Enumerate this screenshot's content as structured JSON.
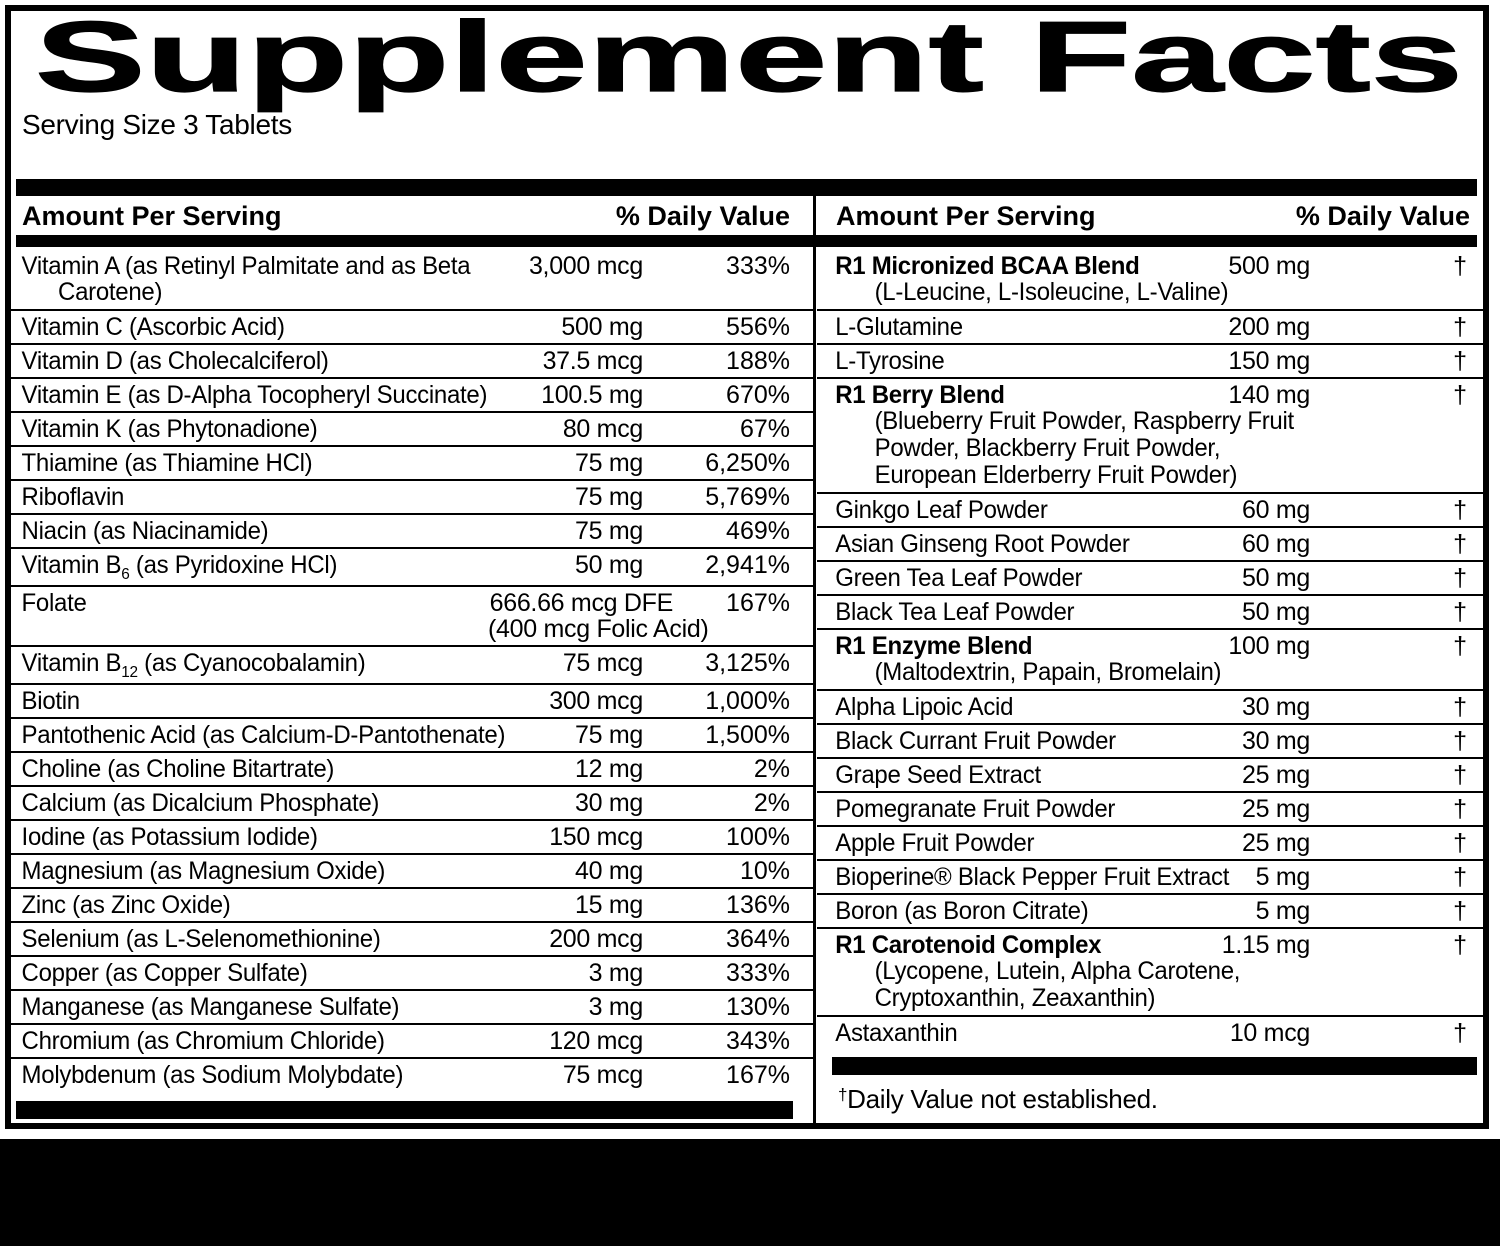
{
  "title": "Supplement Facts",
  "serving_size": "Serving Size 3 Tablets",
  "footnote_symbol": "†",
  "footnote_text": "Daily Value not established.",
  "colors": {
    "ink": "#000000",
    "paper": "#ffffff"
  },
  "columns": {
    "left": {
      "header_amount": "Amount Per Serving",
      "header_dv": "% Daily Value",
      "rows": [
        {
          "label": "Vitamin A (as Retinyl Palmitate and as Beta",
          "sublines": [
            "Carotene)"
          ],
          "amount": [
            "3,000 mcg"
          ],
          "dv": "333%"
        },
        {
          "label": "Vitamin C (Ascorbic Acid)",
          "amount": [
            "500 mg"
          ],
          "dv": "556%"
        },
        {
          "label": "Vitamin D (as Cholecalciferol)",
          "amount": [
            "37.5 mcg"
          ],
          "dv": "188%"
        },
        {
          "label": "Vitamin E (as D-Alpha Tocopheryl Succinate)",
          "amount": [
            "100.5 mg"
          ],
          "dv": "670%"
        },
        {
          "label": "Vitamin K (as Phytonadione)",
          "amount": [
            "80 mcg"
          ],
          "dv": "67%"
        },
        {
          "label": "Thiamine (as Thiamine HCl)",
          "amount": [
            "75 mg"
          ],
          "dv": "6,250%"
        },
        {
          "label": "Riboflavin",
          "amount": [
            "75 mg"
          ],
          "dv": "5,769%"
        },
        {
          "label": "Niacin (as Niacinamide)",
          "amount": [
            "75 mg"
          ],
          "dv": "469%"
        },
        {
          "label_pre": "Vitamin B",
          "label_sub": "6",
          "label_post": " (as Pyridoxine HCl)",
          "amount": [
            "50 mg"
          ],
          "dv": "2,941%"
        },
        {
          "label": "Folate",
          "amount": [
            "666.66 mcg DFE",
            "(400 mcg Folic Acid)"
          ],
          "amount_wide": true,
          "dv": "167%"
        },
        {
          "label_pre": "Vitamin B",
          "label_sub": "12",
          "label_post": " (as Cyanocobalamin)",
          "amount": [
            "75 mcg"
          ],
          "dv": "3,125%"
        },
        {
          "label": "Biotin",
          "amount": [
            "300 mcg"
          ],
          "dv": "1,000%"
        },
        {
          "label": "Pantothenic Acid (as Calcium-D-Pantothenate)",
          "amount": [
            "75 mg"
          ],
          "dv": "1,500%"
        },
        {
          "label": "Choline (as Choline Bitartrate)",
          "amount": [
            "12 mg"
          ],
          "dv": "2%"
        },
        {
          "label": "Calcium (as Dicalcium Phosphate)",
          "amount": [
            "30 mg"
          ],
          "dv": "2%"
        },
        {
          "label": "Iodine (as Potassium Iodide)",
          "amount": [
            "150 mcg"
          ],
          "dv": "100%"
        },
        {
          "label": "Magnesium (as Magnesium Oxide)",
          "amount": [
            "40 mg"
          ],
          "dv": "10%"
        },
        {
          "label": "Zinc (as Zinc Oxide)",
          "amount": [
            "15 mg"
          ],
          "dv": "136%"
        },
        {
          "label": "Selenium (as L-Selenomethionine)",
          "amount": [
            "200 mcg"
          ],
          "dv": "364%"
        },
        {
          "label": "Copper (as Copper Sulfate)",
          "amount": [
            "3 mg"
          ],
          "dv": "333%"
        },
        {
          "label": "Manganese (as Manganese Sulfate)",
          "amount": [
            "3 mg"
          ],
          "dv": "130%"
        },
        {
          "label": "Chromium (as Chromium Chloride)",
          "amount": [
            "120 mcg"
          ],
          "dv": "343%"
        },
        {
          "label": "Molybdenum (as Sodium Molybdate)",
          "amount": [
            "75 mcg"
          ],
          "dv": "167%"
        }
      ]
    },
    "right": {
      "header_amount": "Amount Per Serving",
      "header_dv": "% Daily Value",
      "rows": [
        {
          "label": "R1 Micronized BCAA Blend",
          "bold": true,
          "sublines": [
            "(L-Leucine, L-Isoleucine, L-Valine)"
          ],
          "amount": [
            "500 mg"
          ],
          "dv": "†"
        },
        {
          "label": "L-Glutamine",
          "amount": [
            "200 mg"
          ],
          "dv": "†"
        },
        {
          "label": "L-Tyrosine",
          "amount": [
            "150 mg"
          ],
          "dv": "†"
        },
        {
          "label": "R1 Berry Blend",
          "bold": true,
          "sublines": [
            "(Blueberry Fruit Powder, Raspberry Fruit",
            "Powder, Blackberry Fruit Powder,",
            "European Elderberry Fruit Powder)"
          ],
          "amount": [
            "140 mg"
          ],
          "dv": "†"
        },
        {
          "label": "Ginkgo Leaf Powder",
          "amount": [
            "60 mg"
          ],
          "dv": "†"
        },
        {
          "label": "Asian Ginseng Root Powder",
          "amount": [
            "60 mg"
          ],
          "dv": "†"
        },
        {
          "label": "Green Tea Leaf Powder",
          "amount": [
            "50 mg"
          ],
          "dv": "†"
        },
        {
          "label": "Black Tea Leaf Powder",
          "amount": [
            "50 mg"
          ],
          "dv": "†"
        },
        {
          "label": "R1 Enzyme Blend",
          "bold": true,
          "sublines": [
            "(Maltodextrin, Papain, Bromelain)"
          ],
          "amount": [
            "100 mg"
          ],
          "dv": "†"
        },
        {
          "label": "Alpha Lipoic Acid",
          "amount": [
            "30 mg"
          ],
          "dv": "†"
        },
        {
          "label": "Black Currant Fruit Powder",
          "amount": [
            "30 mg"
          ],
          "dv": "†"
        },
        {
          "label": "Grape Seed Extract",
          "amount": [
            "25 mg"
          ],
          "dv": "†"
        },
        {
          "label": "Pomegranate Fruit Powder",
          "amount": [
            "25 mg"
          ],
          "dv": "†"
        },
        {
          "label": "Apple Fruit Powder",
          "amount": [
            "25 mg"
          ],
          "dv": "†"
        },
        {
          "label": "Bioperine® Black Pepper Fruit Extract",
          "amount": [
            "5 mg"
          ],
          "dv": "†"
        },
        {
          "label": "Boron (as Boron Citrate)",
          "amount": [
            "5 mg"
          ],
          "dv": "†"
        },
        {
          "label": "R1 Carotenoid Complex",
          "bold": true,
          "sublines": [
            "(Lycopene, Lutein, Alpha Carotene,",
            "Cryptoxanthin, Zeaxanthin)"
          ],
          "amount": [
            "1.15 mg"
          ],
          "dv": "†"
        },
        {
          "label": "Astaxanthin",
          "amount": [
            "10 mcg"
          ],
          "dv": "†"
        }
      ]
    }
  }
}
